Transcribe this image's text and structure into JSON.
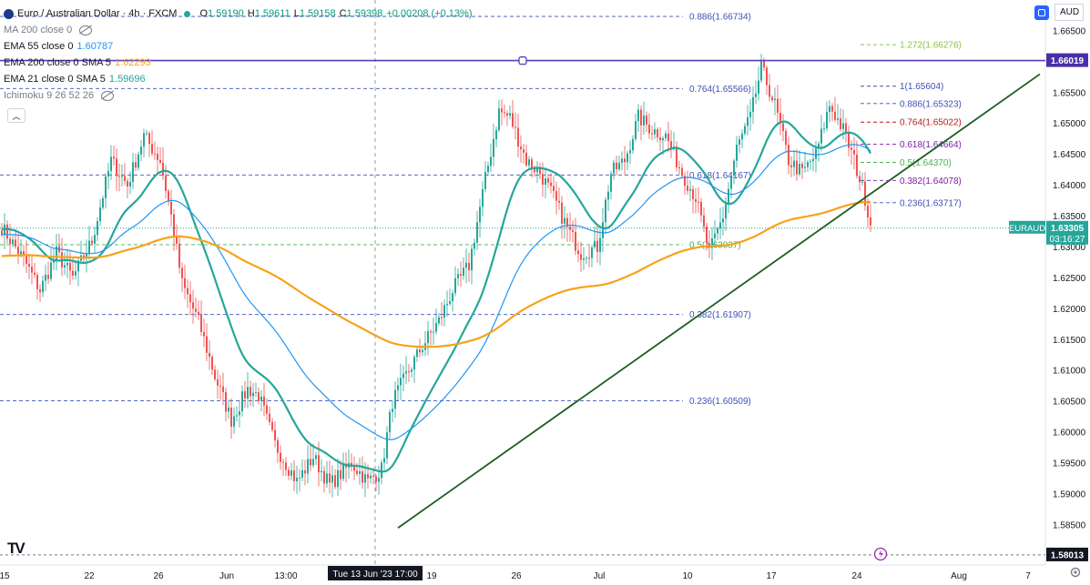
{
  "legend": {
    "symbol": "Euro / Australian Dollar · 4h · FXCM",
    "open_label": "O",
    "open": "1.59190",
    "high_label": "H",
    "high": "1.59611",
    "low_label": "L",
    "low": "1.59158",
    "close_label": "C",
    "close": "1.59398",
    "change": "+0.00208 (+0.13%)",
    "indicators": [
      {
        "name": "MA 200 close 0",
        "value": "",
        "color": "#131722"
      },
      {
        "name": "EMA 55 close 0",
        "value": "1.60787",
        "color": "#2196f3"
      },
      {
        "name": "EMA 200 close 0 SMA 5",
        "value": "1.62293",
        "color": "#f7a21c"
      },
      {
        "name": "EMA 21 close 0 SMA 5",
        "value": "1.59696",
        "color": "#26a69a"
      },
      {
        "name": "Ichimoku 9 26 52 26",
        "value": "",
        "color": "#131722"
      }
    ]
  },
  "currency": "AUD",
  "price_labels": {
    "horizontal_line": "1.66019",
    "last_symbol": "EURAUD",
    "last_price": "1.63305",
    "countdown": "03:16:27",
    "low_mark": "1.58013"
  },
  "time_highlight": "Tue 13 Jun '23   17:00",
  "chart_data": {
    "type": "candlestick",
    "symbol": "EURAUD",
    "timeframe": "4h",
    "ylim": [
      1.5785,
      1.67
    ],
    "y_ticks": [
      "1.66500",
      "1.66000",
      "1.65500",
      "1.65000",
      "1.64500",
      "1.64000",
      "1.63500",
      "1.63000",
      "1.62500",
      "1.62000",
      "1.61500",
      "1.61000",
      "1.60500",
      "1.60000",
      "1.59500",
      "1.59000",
      "1.58500"
    ],
    "x_ticks": [
      "15",
      "22",
      "26",
      "Jun",
      "13:00",
      "19",
      "26",
      "Jul",
      "10",
      "17",
      "24",
      "Aug",
      "7"
    ],
    "anchors": [
      [
        0,
        1.6332
      ],
      [
        8,
        1.628
      ],
      [
        14,
        1.623
      ],
      [
        20,
        1.629
      ],
      [
        26,
        1.625
      ],
      [
        33,
        1.631
      ],
      [
        40,
        1.644
      ],
      [
        46,
        1.64
      ],
      [
        52,
        1.648
      ],
      [
        58,
        1.644
      ],
      [
        62,
        1.635
      ],
      [
        66,
        1.624
      ],
      [
        72,
        1.618
      ],
      [
        78,
        1.609
      ],
      [
        84,
        1.602
      ],
      [
        90,
        1.607
      ],
      [
        94,
        1.606
      ],
      [
        100,
        1.598
      ],
      [
        108,
        1.592
      ],
      [
        114,
        1.596
      ],
      [
        120,
        1.5915
      ],
      [
        128,
        1.595
      ],
      [
        134,
        1.592
      ],
      [
        139,
        1.594
      ],
      [
        143,
        1.605
      ],
      [
        149,
        1.61
      ],
      [
        154,
        1.614
      ],
      [
        160,
        1.618
      ],
      [
        165,
        1.623
      ],
      [
        171,
        1.627
      ],
      [
        177,
        1.641
      ],
      [
        182,
        1.652
      ],
      [
        186,
        1.651
      ],
      [
        192,
        1.644
      ],
      [
        197,
        1.642
      ],
      [
        202,
        1.638
      ],
      [
        207,
        1.633
      ],
      [
        212,
        1.629
      ],
      [
        218,
        1.63
      ],
      [
        223,
        1.642
      ],
      [
        228,
        1.644
      ],
      [
        233,
        1.651
      ],
      [
        238,
        1.649
      ],
      [
        243,
        1.648
      ],
      [
        249,
        1.642
      ],
      [
        254,
        1.638
      ],
      [
        259,
        1.629
      ],
      [
        264,
        1.635
      ],
      [
        269,
        1.646
      ],
      [
        274,
        1.651
      ],
      [
        278,
        1.659
      ],
      [
        283,
        1.653
      ],
      [
        288,
        1.644
      ],
      [
        293,
        1.642
      ],
      [
        298,
        1.645
      ],
      [
        303,
        1.653
      ],
      [
        308,
        1.649
      ],
      [
        312,
        1.644
      ],
      [
        316,
        1.638
      ],
      [
        318,
        1.6335
      ]
    ],
    "series": [
      {
        "name": "EMA 21 close 0 SMA 5",
        "period": 21,
        "color": "#26a69a"
      },
      {
        "name": "EMA 55 close 0",
        "period": 55,
        "color": "#2196f3"
      },
      {
        "name": "EMA 200 close 0 SMA 5",
        "period": 200,
        "color": "#f7a21c"
      }
    ],
    "horizontal_line": {
      "value": 1.66019,
      "color": "#5b3bbd"
    },
    "trendline": {
      "from": [
        145,
        1.5845
      ],
      "to": [
        380,
        1.658
      ],
      "color": "#1b5e20"
    },
    "fib_left": [
      {
        "label": "0.886(1.66734)",
        "value": 1.66734,
        "color": "#3f51b5"
      },
      {
        "label": "0.764(1.65566)",
        "value": 1.65566,
        "color": "#3f51b5"
      },
      {
        "label": "0.618(1.64167)",
        "value": 1.64167,
        "color": "#3f51b5"
      },
      {
        "label": "0.5(1.63037)",
        "value": 1.63037,
        "color": "#4caf50"
      },
      {
        "label": "0.382(1.61907)",
        "value": 1.61907,
        "color": "#3f51b5"
      },
      {
        "label": "0.236(1.60509)",
        "value": 1.60509,
        "color": "#3f51b5"
      }
    ],
    "fib_right": [
      {
        "label": "1.272(1.66276)",
        "value": 1.66276,
        "color": "#8bc34a"
      },
      {
        "label": "1(1.65604)",
        "value": 1.65604,
        "color": "#3f51b5"
      },
      {
        "label": "0.886(1.65323)",
        "value": 1.65323,
        "color": "#3f51b5"
      },
      {
        "label": "0.764(1.65022)",
        "value": 1.65022,
        "color": "#b71c1c"
      },
      {
        "label": "0.618(1.64664)",
        "value": 1.64664,
        "color": "#7b1fa2"
      },
      {
        "label": "0.5(1.64370)",
        "value": 1.6437,
        "color": "#4caf50"
      },
      {
        "label": "0.382(1.64078)",
        "value": 1.64078,
        "color": "#7b1fa2"
      },
      {
        "label": "0.236(1.63717)",
        "value": 1.63717,
        "color": "#3f51b5"
      }
    ],
    "low_mark": 1.58013,
    "last_price": 1.63305,
    "colors": {
      "up": "#26a69a",
      "down": "#ef5350",
      "accent": "#2962ff"
    }
  }
}
